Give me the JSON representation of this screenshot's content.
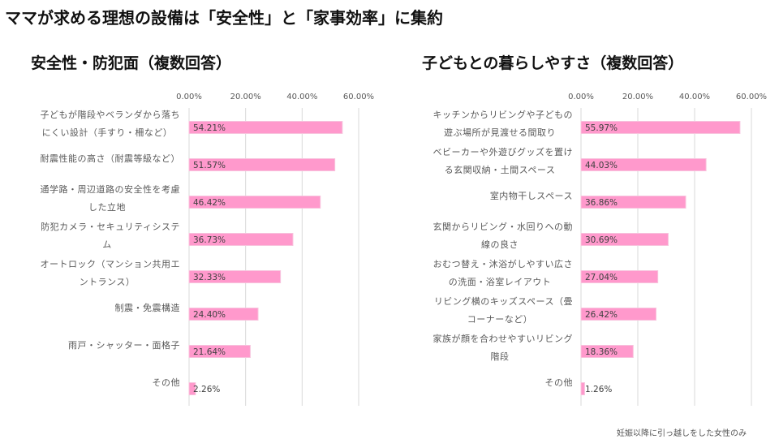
{
  "header": {
    "title": "ママが求める理想の設備は「安全性」と「家事効率」に集約"
  },
  "footnote": "妊娠以降に引っ越しをした女性のみ",
  "colors": {
    "bar": "#ff99cc",
    "bar_edge": "#f8c3dd",
    "grid": "#d9d9d9",
    "label": "#595959",
    "value": "#404040"
  },
  "chart_data": [
    {
      "type": "bar",
      "orientation": "horizontal",
      "title": "安全性・防犯面（複数回答）",
      "xlim": [
        0,
        60
      ],
      "ticks": [
        0,
        20,
        40,
        60
      ],
      "tick_labels": [
        "0.00%",
        "20.00%",
        "40.00%",
        "60.00%"
      ],
      "grid": true,
      "categories": [
        [
          "子どもが階段やベランダから落ち",
          "にくい設計（手すり・柵など）"
        ],
        [
          "耐震性能の高さ（耐震等級など）"
        ],
        [
          "通学路・周辺道路の安全性を考慮",
          "した立地"
        ],
        [
          "防犯カメラ・セキュリティシステ",
          "ム"
        ],
        [
          "オートロック（マンション共用エ",
          "ントランス）"
        ],
        [
          "制震・免震構造"
        ],
        [
          "雨戸・シャッター・面格子"
        ],
        [
          "その他"
        ]
      ],
      "values": [
        54.21,
        51.57,
        46.42,
        36.73,
        32.33,
        24.4,
        21.64,
        2.26
      ],
      "value_labels": [
        "54.21%",
        "51.57%",
        "46.42%",
        "36.73%",
        "32.33%",
        "24.40%",
        "21.64%",
        "2.26%"
      ]
    },
    {
      "type": "bar",
      "orientation": "horizontal",
      "title": "子どもとの暮らしやすさ（複数回答）",
      "xlim": [
        0,
        60
      ],
      "ticks": [
        0,
        20,
        40,
        60
      ],
      "tick_labels": [
        "0.00%",
        "20.00%",
        "40.00%",
        "60.00%"
      ],
      "grid": true,
      "categories": [
        [
          "キッチンからリビングや子どもの",
          "遊ぶ場所が見渡せる間取り"
        ],
        [
          "ベビーカーや外遊びグッズを置け",
          "る玄関収納・土間スペース"
        ],
        [
          "室内物干しスペース"
        ],
        [
          "玄関からリビング・水回りへの動",
          "線の良さ"
        ],
        [
          "おむつ替え・沐浴がしやすい広さ",
          "の洗面・浴室レイアウト"
        ],
        [
          "リビング横のキッズスペース（畳",
          "コーナーなど）"
        ],
        [
          "家族が顔を合わせやすいリビング",
          "階段"
        ],
        [
          "その他"
        ]
      ],
      "values": [
        55.97,
        44.03,
        36.86,
        30.69,
        27.04,
        26.42,
        18.36,
        1.26
      ],
      "value_labels": [
        "55.97%",
        "44.03%",
        "36.86%",
        "30.69%",
        "27.04%",
        "26.42%",
        "18.36%",
        "1.26%"
      ]
    }
  ]
}
